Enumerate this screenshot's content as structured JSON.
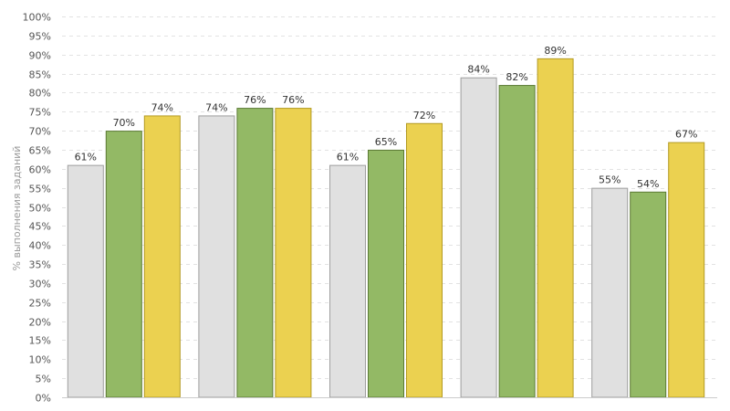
{
  "chart_data": {
    "type": "bar",
    "categories": [
      "",
      "",
      "",
      "",
      ""
    ],
    "series": [
      {
        "values": [
          61,
          74,
          61,
          84,
          55
        ],
        "color": "#e0e0e0",
        "stroke": "#9e9e9e"
      },
      {
        "values": [
          70,
          76,
          65,
          82,
          54
        ],
        "color": "#93b965",
        "stroke": "#5b7a34"
      },
      {
        "values": [
          74,
          76,
          72,
          89,
          67
        ],
        "color": "#ebd150",
        "stroke": "#b39a22"
      }
    ],
    "ylabel": "% выполнения заданий",
    "ylim": [
      0,
      100
    ],
    "ytick_step": 5,
    "value_suffix": "%",
    "grid": true,
    "legend": "none"
  }
}
